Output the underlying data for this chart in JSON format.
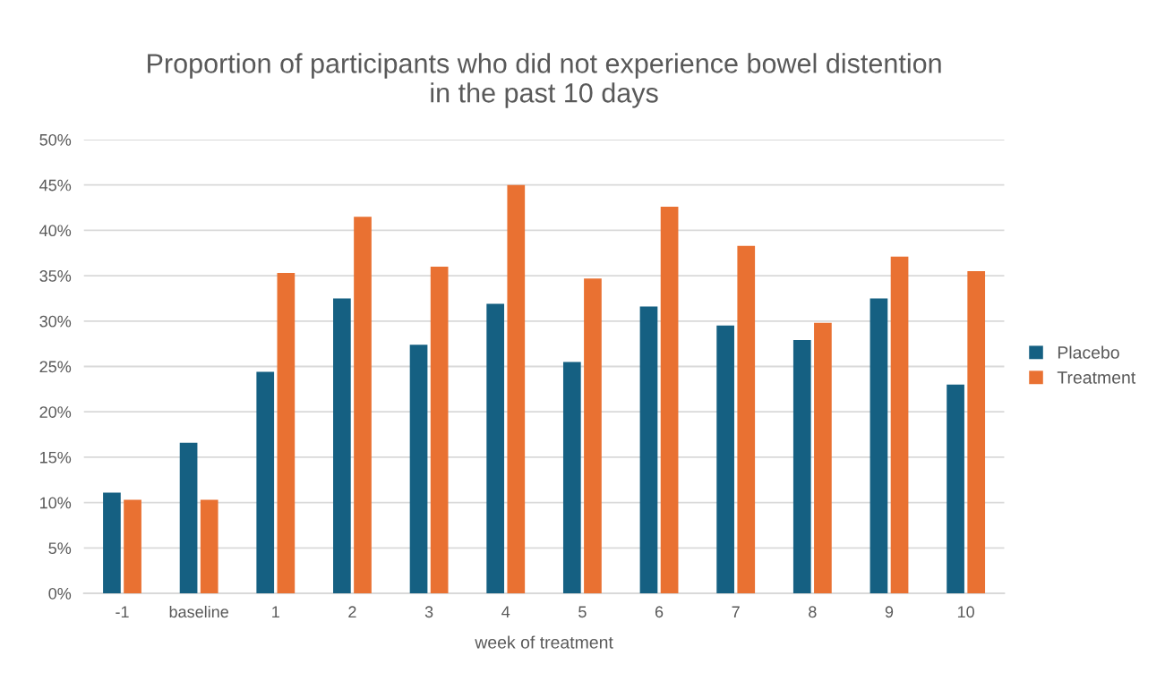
{
  "chart_data": {
    "type": "bar",
    "title": "Proportion of participants who did not experience bowel distention\nin the past 10 days",
    "xlabel": "week of treatment",
    "categories": [
      "-1",
      "baseline",
      "1",
      "2",
      "3",
      "4",
      "5",
      "6",
      "7",
      "8",
      "9",
      "10"
    ],
    "series": [
      {
        "name": "Placebo",
        "color": "#156082",
        "values": [
          11.1,
          16.6,
          24.4,
          32.5,
          27.4,
          31.9,
          25.5,
          31.6,
          29.5,
          27.9,
          32.5,
          23.0
        ]
      },
      {
        "name": "Treatment",
        "color": "#e97132",
        "values": [
          10.3,
          10.3,
          35.3,
          41.5,
          36.0,
          45.0,
          34.7,
          42.6,
          38.3,
          29.8,
          37.1,
          35.5
        ]
      }
    ],
    "ylim": [
      0,
      50
    ],
    "yticks": [
      {
        "value": 0,
        "label": "0%"
      },
      {
        "value": 5,
        "label": "5%"
      },
      {
        "value": 10,
        "label": "10%"
      },
      {
        "value": 15,
        "label": "15%"
      },
      {
        "value": 20,
        "label": "20%"
      },
      {
        "value": 25,
        "label": "25%"
      },
      {
        "value": 30,
        "label": "30%"
      },
      {
        "value": 35,
        "label": "35%"
      },
      {
        "value": 40,
        "label": "40%"
      },
      {
        "value": 45,
        "label": "45%"
      },
      {
        "value": 50,
        "label": "50%"
      }
    ],
    "grid": "y",
    "legend": "right"
  }
}
